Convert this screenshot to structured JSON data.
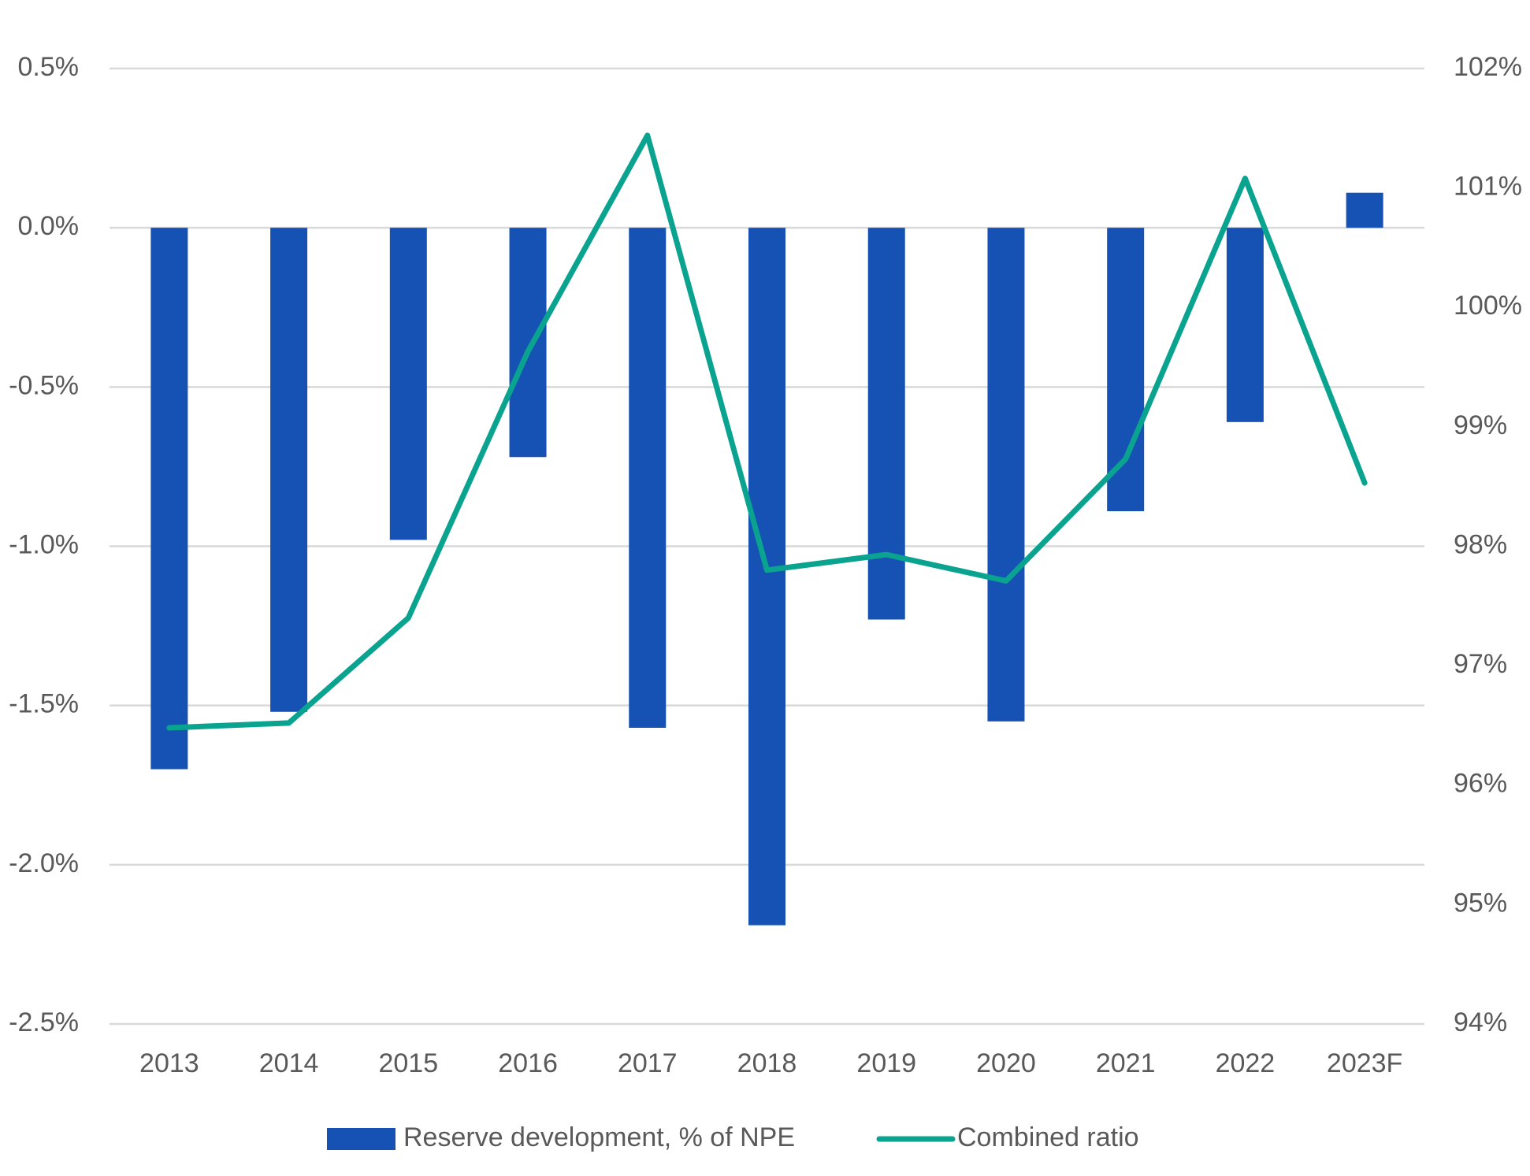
{
  "chart_data": {
    "type": "bar-line",
    "categories": [
      "2013",
      "2014",
      "2015",
      "2016",
      "2017",
      "2018",
      "2019",
      "2020",
      "2021",
      "2022",
      "2023F"
    ],
    "series": [
      {
        "name": "Reserve development, % of NPE",
        "type": "bar",
        "color": "#1652b3",
        "axis": "y",
        "values": [
          -1.7,
          -1.52,
          -0.98,
          -0.72,
          -1.57,
          -2.19,
          -1.23,
          -1.55,
          -0.89,
          -0.61,
          0.11
        ]
      },
      {
        "name": "Combined ratio",
        "type": "line",
        "color": "#0aa390",
        "axis": "y2",
        "values": [
          96.48,
          96.52,
          97.4,
          99.63,
          101.44,
          97.8,
          97.93,
          97.71,
          98.73,
          101.08,
          98.53
        ]
      }
    ],
    "ylim": [
      -2.5,
      0.5
    ],
    "yticks": [
      {
        "value": 0.5,
        "label": "0.5%"
      },
      {
        "value": 0,
        "label": "0.0%"
      },
      {
        "value": -0.5,
        "label": "-0.5%"
      },
      {
        "value": -1,
        "label": "-1.0%"
      },
      {
        "value": -1.5,
        "label": "-1.5%"
      },
      {
        "value": -2,
        "label": "-2.0%"
      },
      {
        "value": -2.5,
        "label": "-2.5%"
      }
    ],
    "y2lim": [
      94,
      102
    ],
    "y2ticks": [
      {
        "value": 102,
        "label": "102%"
      },
      {
        "value": 101,
        "label": "101%"
      },
      {
        "value": 100,
        "label": "100%"
      },
      {
        "value": 99,
        "label": "99%"
      },
      {
        "value": 98,
        "label": "98%"
      },
      {
        "value": 97,
        "label": "97%"
      },
      {
        "value": 96,
        "label": "96%"
      },
      {
        "value": 95,
        "label": "95%"
      },
      {
        "value": 94,
        "label": "94%"
      }
    ],
    "grid": true,
    "legend": "bottom"
  }
}
